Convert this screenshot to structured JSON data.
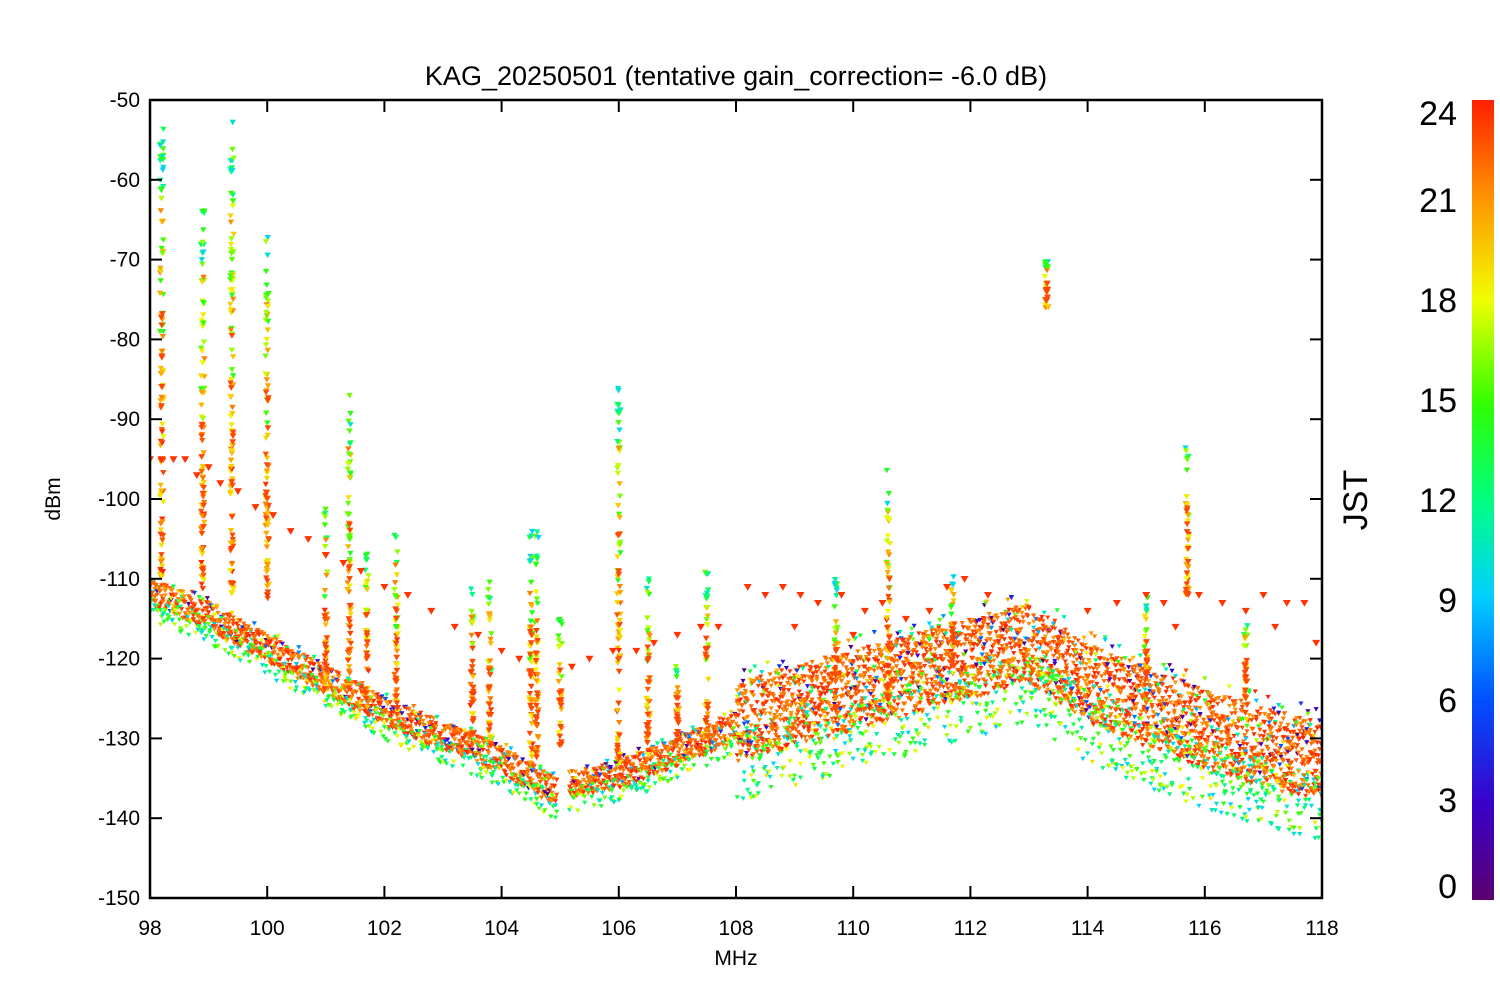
{
  "chart_data": {
    "type": "scatter",
    "title": "KAG_20250501 (tentative gain_correction= -6.0 dB)",
    "xlabel": "MHz",
    "ylabel": "dBm",
    "xlim": [
      98,
      118
    ],
    "ylim": [
      -150,
      -50
    ],
    "x_ticks": [
      "98",
      "100",
      "102",
      "104",
      "106",
      "108",
      "110",
      "112",
      "114",
      "116",
      "118"
    ],
    "y_ticks": [
      "-50",
      "-60",
      "-70",
      "-80",
      "-90",
      "-100",
      "-110",
      "-120",
      "-130",
      "-140",
      "-150"
    ],
    "colorbar": {
      "label": "JST",
      "range": [
        0,
        24
      ],
      "ticks": [
        "0",
        "3",
        "6",
        "9",
        "12",
        "15",
        "18",
        "21",
        "24"
      ],
      "colormap": "rainbow"
    },
    "marker": "down-triangle",
    "grid": false,
    "noise_floor": [
      {
        "x": 98.0,
        "y": -112
      },
      {
        "x": 99.0,
        "y": -115
      },
      {
        "x": 100.0,
        "y": -119
      },
      {
        "x": 101.0,
        "y": -123
      },
      {
        "x": 102.0,
        "y": -127
      },
      {
        "x": 103.0,
        "y": -130
      },
      {
        "x": 104.0,
        "y": -133
      },
      {
        "x": 104.9,
        "y": -137
      },
      {
        "x": 105.2,
        "y": -136
      },
      {
        "x": 106.0,
        "y": -135
      },
      {
        "x": 107.0,
        "y": -132
      },
      {
        "x": 108.0,
        "y": -129
      },
      {
        "x": 109.0,
        "y": -127
      },
      {
        "x": 110.0,
        "y": -125
      },
      {
        "x": 111.0,
        "y": -123
      },
      {
        "x": 112.0,
        "y": -121
      },
      {
        "x": 113.0,
        "y": -119
      },
      {
        "x": 114.0,
        "y": -124
      },
      {
        "x": 115.0,
        "y": -127
      },
      {
        "x": 116.0,
        "y": -130
      },
      {
        "x": 117.0,
        "y": -132
      },
      {
        "x": 118.0,
        "y": -134
      }
    ],
    "noise_spread_above_108_db": 10,
    "carriers": [
      {
        "x": 98.2,
        "peak": -53,
        "base": -110
      },
      {
        "x": 98.9,
        "peak": -63,
        "base": -112
      },
      {
        "x": 99.4,
        "peak": -52,
        "base": -112
      },
      {
        "x": 100.0,
        "peak": -66,
        "base": -113
      },
      {
        "x": 101.0,
        "peak": -101,
        "base": -124
      },
      {
        "x": 101.4,
        "peak": -87,
        "base": -125
      },
      {
        "x": 101.7,
        "peak": -106,
        "base": -127
      },
      {
        "x": 102.2,
        "peak": -104,
        "base": -127
      },
      {
        "x": 103.5,
        "peak": -111,
        "base": -130
      },
      {
        "x": 103.8,
        "peak": -110,
        "base": -131
      },
      {
        "x": 104.5,
        "peak": -104,
        "base": -134
      },
      {
        "x": 104.6,
        "peak": -104,
        "base": -134
      },
      {
        "x": 105.0,
        "peak": -115,
        "base": -131
      },
      {
        "x": 106.0,
        "peak": -85,
        "base": -133
      },
      {
        "x": 106.5,
        "peak": -109,
        "base": -132
      },
      {
        "x": 107.0,
        "peak": -120,
        "base": -131
      },
      {
        "x": 107.5,
        "peak": -109,
        "base": -130
      },
      {
        "x": 109.7,
        "peak": -110,
        "base": -127
      },
      {
        "x": 110.6,
        "peak": -96,
        "base": -125
      },
      {
        "x": 111.7,
        "peak": -109,
        "base": -121
      },
      {
        "x": 113.3,
        "peak": -70,
        "base": -76
      },
      {
        "x": 115.0,
        "peak": -112,
        "base": -125
      },
      {
        "x": 115.7,
        "peak": -92,
        "base": -112
      },
      {
        "x": 116.7,
        "peak": -115,
        "base": -128
      }
    ],
    "red_scattered_points": [
      {
        "x": 98.0,
        "y": -95
      },
      {
        "x": 98.2,
        "y": -95
      },
      {
        "x": 98.4,
        "y": -95
      },
      {
        "x": 98.6,
        "y": -95
      },
      {
        "x": 98.8,
        "y": -97
      },
      {
        "x": 99.0,
        "y": -96
      },
      {
        "x": 99.2,
        "y": -98
      },
      {
        "x": 99.5,
        "y": -99
      },
      {
        "x": 99.8,
        "y": -101
      },
      {
        "x": 100.1,
        "y": -102
      },
      {
        "x": 100.4,
        "y": -104
      },
      {
        "x": 100.7,
        "y": -105
      },
      {
        "x": 101.0,
        "y": -107
      },
      {
        "x": 101.3,
        "y": -108
      },
      {
        "x": 101.6,
        "y": -109
      },
      {
        "x": 102.0,
        "y": -111
      },
      {
        "x": 102.4,
        "y": -112
      },
      {
        "x": 102.8,
        "y": -114
      },
      {
        "x": 103.2,
        "y": -116
      },
      {
        "x": 103.6,
        "y": -117
      },
      {
        "x": 104.0,
        "y": -119
      },
      {
        "x": 104.3,
        "y": -120
      },
      {
        "x": 105.2,
        "y": -121
      },
      {
        "x": 105.5,
        "y": -120
      },
      {
        "x": 105.9,
        "y": -119
      },
      {
        "x": 106.3,
        "y": -119
      },
      {
        "x": 106.6,
        "y": -118
      },
      {
        "x": 107.0,
        "y": -117
      },
      {
        "x": 107.4,
        "y": -116
      },
      {
        "x": 107.7,
        "y": -116
      },
      {
        "x": 108.2,
        "y": -111
      },
      {
        "x": 108.5,
        "y": -112
      },
      {
        "x": 108.8,
        "y": -111
      },
      {
        "x": 109.1,
        "y": -112
      },
      {
        "x": 109.4,
        "y": -113
      },
      {
        "x": 109.8,
        "y": -112
      },
      {
        "x": 110.2,
        "y": -114
      },
      {
        "x": 110.5,
        "y": -113
      },
      {
        "x": 110.9,
        "y": -115
      },
      {
        "x": 111.3,
        "y": -114
      },
      {
        "x": 111.6,
        "y": -111
      },
      {
        "x": 111.9,
        "y": -110
      },
      {
        "x": 112.3,
        "y": -112
      },
      {
        "x": 114.0,
        "y": -114
      },
      {
        "x": 114.5,
        "y": -113
      },
      {
        "x": 115.0,
        "y": -112
      },
      {
        "x": 115.3,
        "y": -113
      },
      {
        "x": 115.9,
        "y": -112
      },
      {
        "x": 116.3,
        "y": -113
      },
      {
        "x": 116.7,
        "y": -114
      },
      {
        "x": 117.0,
        "y": -112
      },
      {
        "x": 117.4,
        "y": -113
      },
      {
        "x": 117.7,
        "y": -113
      },
      {
        "x": 117.9,
        "y": -118
      },
      {
        "x": 109.0,
        "y": -116
      },
      {
        "x": 110.0,
        "y": -117
      },
      {
        "x": 115.5,
        "y": -116
      },
      {
        "x": 117.2,
        "y": -116
      }
    ]
  }
}
